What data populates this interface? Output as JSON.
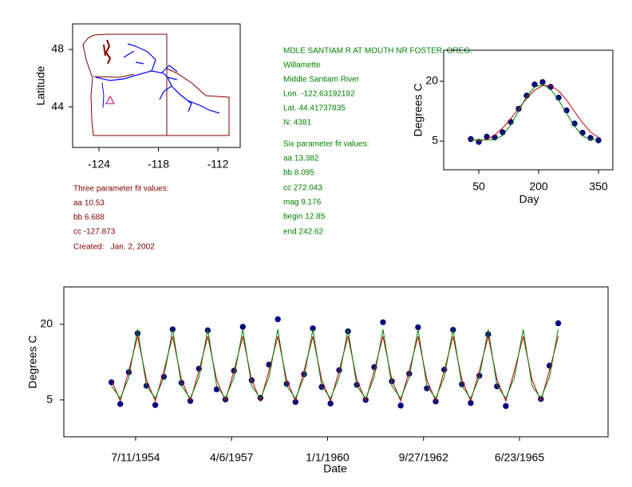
{
  "site": {
    "name": "MDLE SANTIAM R AT MOUTH NR FOSTER, OREG.",
    "basin": "Willamette",
    "river": "Middle Santiam River",
    "lon": "Lon. -122.63192192",
    "lat": "Lat. 44.41737835",
    "n": "N: 4381"
  },
  "six_param": {
    "title": "Six parameter fit values:",
    "lines": [
      "aa 13.382",
      "bb 8.095",
      "cc 272.043",
      "mag 9.176",
      "begin 12.85",
      "end 242.62"
    ]
  },
  "three_param": {
    "title": "Three parameter fit values:",
    "lines": [
      "aa 10.53",
      "bb 6.688",
      "cc -127.873"
    ],
    "created": "Created:   Jan. 2, 2002"
  },
  "chart_data": [
    {
      "type": "map",
      "ylabel": "Latitude",
      "xlim": [
        -126.66,
        -109.75
      ],
      "ylim": [
        41.17,
        49.78
      ],
      "xticks": [
        -124,
        -118,
        -112
      ],
      "yticks": [
        48,
        44
      ]
    },
    {
      "type": "scatter",
      "xlabel": "Day",
      "ylabel": "Degrees C",
      "xlim": [
        -38,
        386
      ],
      "ylim": [
        -2.2,
        27.8
      ],
      "xticks": [
        50,
        200,
        350
      ],
      "yticks": [
        20,
        5
      ],
      "x": [
        30,
        50,
        70,
        90,
        110,
        130,
        150,
        170,
        190,
        210,
        230,
        250,
        270,
        290,
        310,
        330,
        350
      ],
      "series": [
        {
          "style": "points",
          "color": "#000080",
          "values": [
            5.5,
            4.8,
            6.1,
            5.9,
            7.2,
            9.8,
            13.1,
            16.4,
            19.2,
            19.8,
            18.6,
            15.9,
            12.7,
            9.4,
            7.1,
            5.8,
            5.2
          ]
        },
        {
          "style": "line",
          "color": "#c00000",
          "values": [
            5.5,
            5.1,
            5.4,
            6.5,
            8.3,
            10.6,
            13.2,
            15.7,
            17.8,
            18.9,
            18.9,
            17.6,
            15.3,
            12.4,
            9.6,
            7.3,
            5.9
          ]
        },
        {
          "style": "line",
          "color": "#008000",
          "values": [
            5.3,
            5.3,
            5.3,
            5.4,
            6.4,
            9.0,
            12.6,
            16.2,
            18.6,
            19.2,
            18.0,
            15.3,
            11.9,
            8.7,
            6.3,
            5.4,
            5.3
          ]
        }
      ]
    },
    {
      "type": "scatter",
      "xlabel": "Date",
      "ylabel": "Degrees C",
      "xlim": [
        "1952-06-23",
        "1968-01-02"
      ],
      "ylim": [
        -2.3,
        27.4
      ],
      "xticks": [
        {
          "value": "1954-07-11",
          "label": "7/11/1954"
        },
        {
          "value": "1957-04-06",
          "label": "4/6/1957"
        },
        {
          "value": "1960-01-01",
          "label": "1/1/1960"
        },
        {
          "value": "1962-09-27",
          "label": "9/27/1962"
        },
        {
          "value": "1965-06-23",
          "label": "6/23/1965"
        }
      ],
      "yticks": [
        20,
        5
      ],
      "x": [
        "1953-11-01",
        "1954-02-01",
        "1954-05-01",
        "1954-08-01",
        "1954-11-01",
        "1955-02-01",
        "1955-05-01",
        "1955-08-01",
        "1955-11-01",
        "1956-02-01",
        "1956-05-01",
        "1956-08-01",
        "1956-11-01",
        "1957-02-01",
        "1957-05-01",
        "1957-08-01",
        "1957-11-01",
        "1958-02-01",
        "1958-05-01",
        "1958-08-01",
        "1958-11-01",
        "1959-02-01",
        "1959-05-01",
        "1959-08-01",
        "1959-11-01",
        "1960-02-01",
        "1960-05-01",
        "1960-08-01",
        "1960-11-01",
        "1961-02-01",
        "1961-05-01",
        "1961-08-01",
        "1961-11-01",
        "1962-02-01",
        "1962-05-01",
        "1962-08-01",
        "1962-11-01",
        "1963-02-01",
        "1963-05-01",
        "1963-08-01",
        "1963-11-01",
        "1964-02-01",
        "1964-05-01",
        "1964-08-01",
        "1964-11-01",
        "1965-02-01",
        "1965-05-01",
        "1965-08-01",
        "1965-11-01",
        "1966-02-01",
        "1966-05-01",
        "1966-08-01"
      ],
      "series": [
        {
          "style": "points",
          "color": "#000080",
          "values": [
            8.5,
            4.2,
            10.5,
            18.2,
            7.8,
            4.0,
            9.6,
            19.0,
            8.4,
            4.8,
            11.2,
            18.8,
            7.1,
            5.1,
            10.8,
            19.5,
            8.9,
            5.4,
            12.0,
            21.0,
            8.2,
            4.6,
            10.1,
            19.2,
            7.6,
            4.3,
            10.9,
            18.6,
            8.0,
            5.0,
            11.5,
            20.4,
            8.7,
            3.9,
            10.2,
            19.4,
            7.3,
            4.7,
            11.0,
            18.9,
            8.1,
            4.4,
            9.8,
            18.0,
            7.7,
            3.8,
            null,
            null,
            null,
            5.2,
            11.8,
            20.2
          ]
        },
        {
          "style": "line",
          "color": "#c00000",
          "values": [
            9.0,
            4.8,
            10.8,
            17.6,
            9.0,
            4.8,
            10.8,
            17.6,
            9.0,
            4.8,
            10.8,
            17.6,
            9.0,
            4.8,
            10.8,
            17.6,
            9.0,
            4.8,
            10.8,
            17.6,
            9.0,
            4.8,
            10.8,
            17.6,
            9.0,
            4.8,
            10.8,
            17.6,
            9.0,
            4.8,
            10.8,
            17.6,
            9.0,
            4.8,
            10.8,
            17.6,
            9.0,
            4.8,
            10.8,
            17.6,
            9.0,
            4.8,
            10.8,
            17.6,
            9.0,
            4.8,
            10.8,
            17.6,
            9.0,
            4.8,
            10.8,
            17.6
          ]
        },
        {
          "style": "line",
          "color": "#008000",
          "values": [
            7.8,
            5.3,
            9.5,
            19.0,
            7.8,
            5.3,
            9.5,
            19.0,
            7.8,
            5.3,
            9.5,
            19.0,
            7.8,
            5.3,
            9.5,
            19.0,
            7.8,
            5.3,
            9.5,
            19.0,
            7.8,
            5.3,
            9.5,
            19.0,
            7.8,
            5.3,
            9.5,
            19.0,
            7.8,
            5.3,
            9.5,
            19.0,
            7.8,
            5.3,
            9.5,
            19.0,
            7.8,
            5.3,
            9.5,
            19.0,
            7.8,
            5.3,
            9.5,
            19.0,
            7.8,
            5.3,
            9.5,
            19.0,
            7.8,
            5.3,
            9.5,
            19.0
          ]
        }
      ]
    }
  ]
}
